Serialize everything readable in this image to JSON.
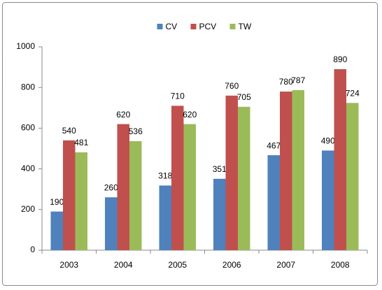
{
  "chart_data": {
    "type": "bar",
    "categories": [
      "2003",
      "2004",
      "2005",
      "2006",
      "2007",
      "2008"
    ],
    "series": [
      {
        "name": "CV",
        "color": "#4f81bd",
        "values": [
          190,
          260,
          318,
          351,
          467,
          490
        ]
      },
      {
        "name": "PCV",
        "color": "#c0504d",
        "values": [
          540,
          620,
          710,
          760,
          780,
          890
        ]
      },
      {
        "name": "TW",
        "color": "#9bbb59",
        "values": [
          481,
          536,
          620,
          705,
          787,
          724
        ]
      }
    ],
    "ylim": [
      0,
      1000
    ],
    "yticks": [
      0,
      200,
      400,
      600,
      800,
      1000
    ],
    "grid": false,
    "legend": "top"
  }
}
